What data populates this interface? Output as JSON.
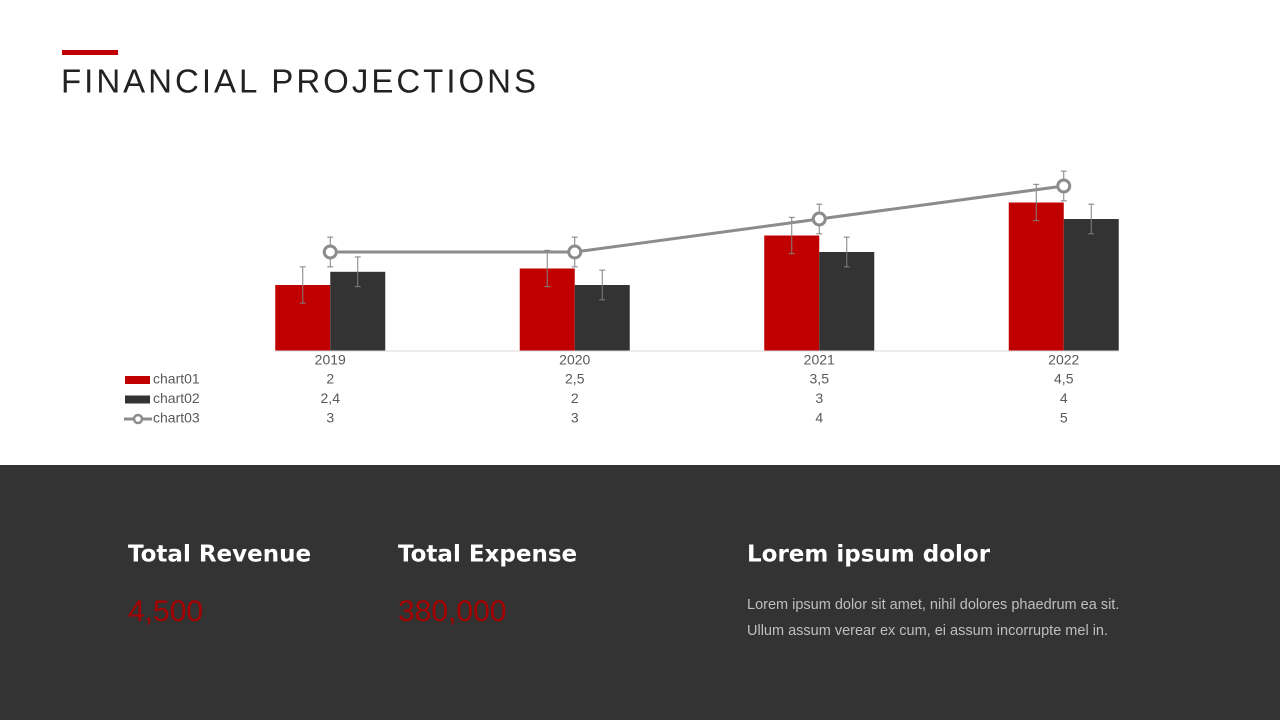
{
  "slide_title": "FINANCIAL PROJECTIONS",
  "chart_data": {
    "type": "bar",
    "categories": [
      "2019",
      "2020",
      "2021",
      "2022"
    ],
    "ylim": [
      0,
      6
    ],
    "series": [
      {
        "name": "chart01",
        "type": "bar",
        "color": "#c00000",
        "values": [
          2,
          2.5,
          3.5,
          4.5
        ],
        "value_labels": [
          "2",
          "2,5",
          "3,5",
          "4,5"
        ],
        "errors": [
          0.55,
          0.55,
          0.55,
          0.55
        ]
      },
      {
        "name": "chart02",
        "type": "bar",
        "color": "#333333",
        "values": [
          2.4,
          2,
          3,
          4
        ],
        "value_labels": [
          "2,4",
          "2",
          "3",
          "4"
        ],
        "errors": [
          0.45,
          0.45,
          0.45,
          0.45
        ]
      },
      {
        "name": "chart03",
        "type": "line",
        "color": "#8c8c8c",
        "values": [
          3,
          3,
          4,
          5
        ],
        "errors": [
          0.45,
          0.45,
          0.45,
          0.45
        ]
      }
    ]
  },
  "summary": {
    "stats": [
      {
        "label": "Total Revenue",
        "value": "4,500"
      },
      {
        "label": "Total Expense",
        "value": "380,000"
      }
    ],
    "heading": "Lorem ipsum dolor",
    "lines": [
      "Lorem ipsum dolor sit amet, nihil dolores phaedrum ea sit.",
      "Ullum assum verear  ex cum, ei assum incorrupte  mel in."
    ]
  }
}
